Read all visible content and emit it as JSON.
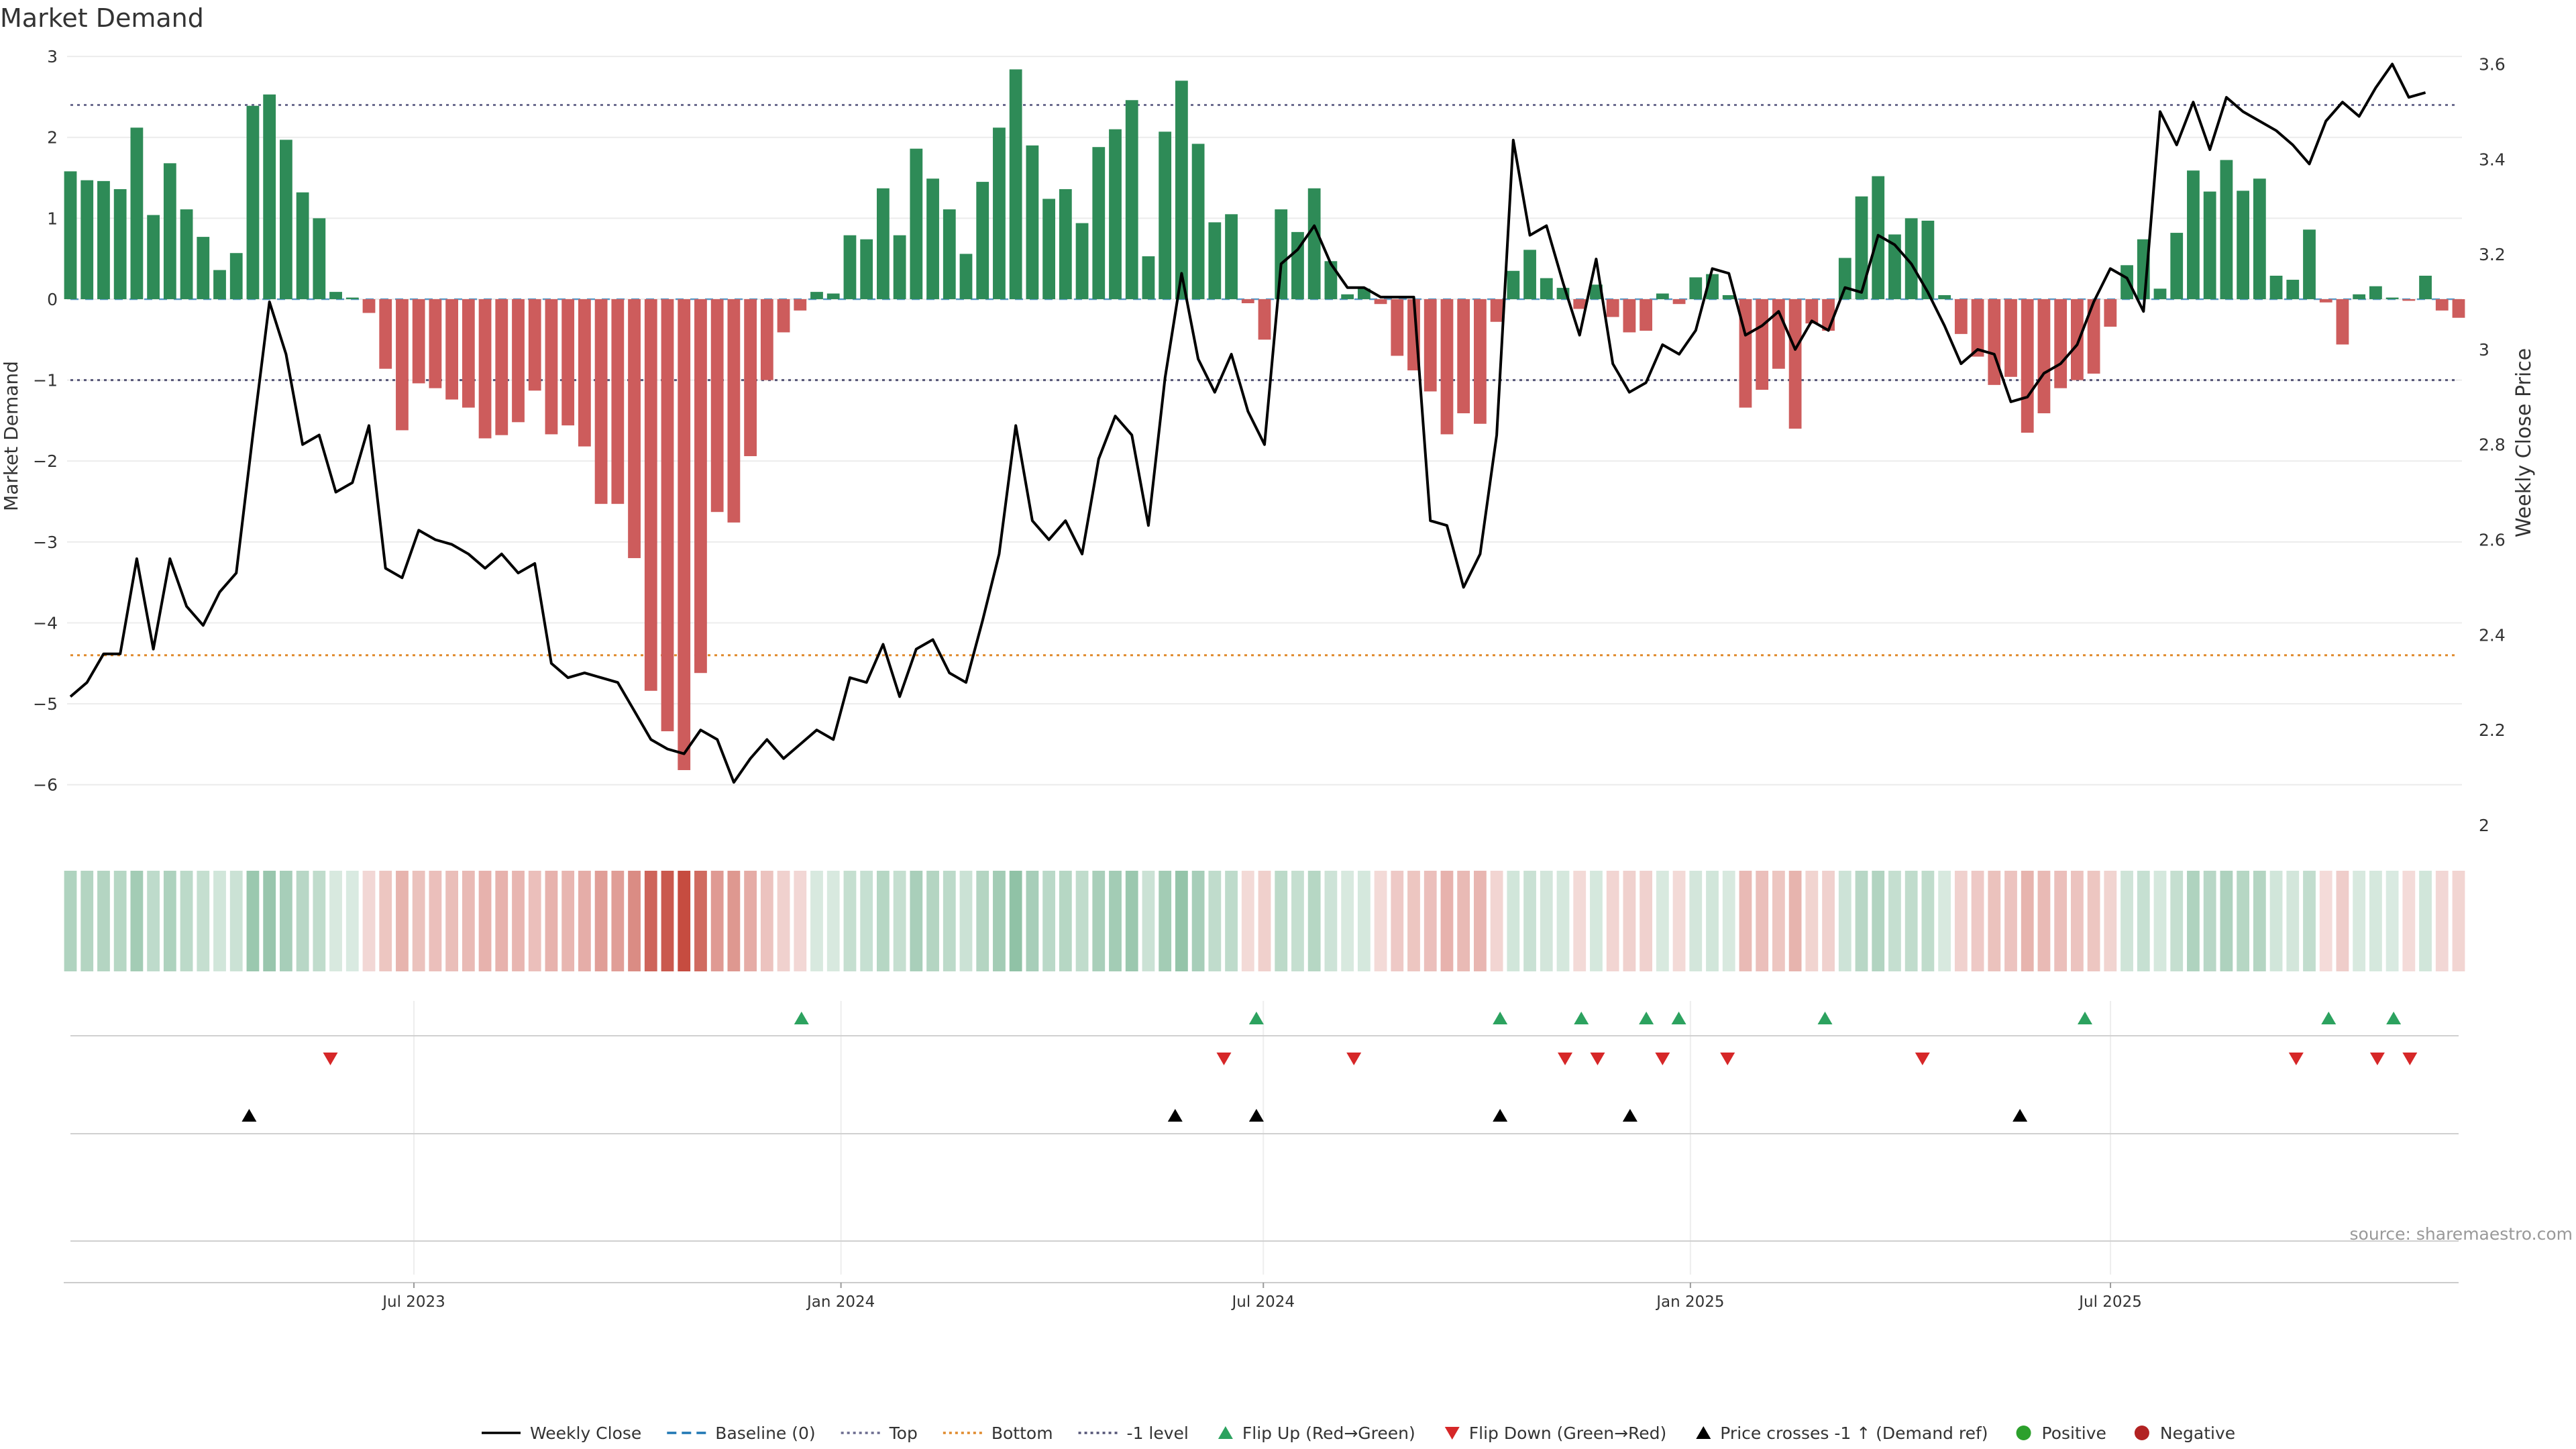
{
  "chart_data": {
    "type": "bar",
    "title": "Market Demand",
    "ylabel": "Market Demand",
    "y2label": "Weekly Close Price",
    "ylim": [
      -6.5,
      3.2
    ],
    "y2lim": [
      2.0,
      3.65
    ],
    "yticks": [
      3,
      2,
      1,
      0,
      -1,
      -2,
      -3,
      -4,
      -5,
      -6
    ],
    "ytick_labels": [
      "3",
      "2",
      "1",
      "0",
      "−1",
      "−2",
      "−3",
      "−4",
      "−5",
      "−6"
    ],
    "y2ticks": [
      3.6,
      3.4,
      3.2,
      3.0,
      2.8,
      2.6,
      2.4,
      2.2,
      2.0
    ],
    "y2tick_labels": [
      "3.6",
      "3.4",
      "3.2",
      "3",
      "2.8",
      "2.6",
      "2.4",
      "2.2",
      "2"
    ],
    "x_start": "2023-02-03",
    "x_end": "2025-11-28",
    "x_ticks": [
      {
        "date": "2023-07-01",
        "label": "Jul 2023"
      },
      {
        "date": "2024-01-01",
        "label": "Jan 2024"
      },
      {
        "date": "2024-07-01",
        "label": "Jul 2024"
      },
      {
        "date": "2025-01-01",
        "label": "Jan 2025"
      },
      {
        "date": "2025-07-01",
        "label": "Jul 2025"
      }
    ],
    "levels": {
      "top": 2.4,
      "bottom": -4.4,
      "minus_one": -1,
      "baseline": 0
    },
    "grid": true,
    "legend_position": "bottom",
    "series": [
      {
        "name": "Market Demand",
        "values": [
          1.58,
          1.47,
          1.46,
          1.36,
          2.12,
          1.04,
          1.68,
          1.11,
          0.77,
          0.36,
          0.57,
          2.39,
          2.53,
          1.97,
          1.32,
          1.0,
          0.09,
          0.02,
          -0.17,
          -0.86,
          -1.62,
          -1.04,
          -1.1,
          -1.24,
          -1.34,
          -1.72,
          -1.68,
          -1.52,
          -1.13,
          -1.67,
          -1.56,
          -1.82,
          -2.53,
          -2.53,
          -3.2,
          -4.84,
          -5.34,
          -5.82,
          -4.62,
          -2.63,
          -2.76,
          -1.94,
          -1.0,
          -0.41,
          -0.14,
          0.09,
          0.07,
          0.79,
          0.74,
          1.37,
          0.79,
          1.86,
          1.49,
          1.11,
          0.56,
          1.45,
          2.12,
          2.84,
          1.9,
          1.24,
          1.36,
          0.94,
          1.88,
          2.1,
          2.46,
          0.53,
          2.07,
          2.7,
          1.92,
          0.95,
          1.05,
          -0.05,
          -0.5,
          1.11,
          0.83,
          1.37,
          0.47,
          0.06,
          0.13,
          -0.06,
          -0.7,
          -0.88,
          -1.14,
          -1.67,
          -1.41,
          -1.54,
          -0.28,
          0.35,
          0.61,
          0.26,
          0.14,
          -0.12,
          0.18,
          -0.22,
          -0.41,
          -0.39,
          0.07,
          -0.06,
          0.27,
          0.31,
          0.05,
          -1.34,
          -1.12,
          -0.86,
          -1.6,
          -0.3,
          -0.39,
          0.51,
          1.27,
          1.52,
          0.8,
          1.0,
          0.97,
          0.05,
          -0.43,
          -0.71,
          -1.06,
          -0.96,
          -1.65,
          -1.41,
          -1.1,
          -1.0,
          -0.92,
          -0.34,
          0.42,
          0.74,
          0.13,
          0.82,
          1.59,
          1.33,
          1.72,
          1.34,
          1.49,
          0.29,
          0.24,
          0.86,
          -0.04,
          -0.56,
          0.06,
          0.16,
          0.02,
          -0.02,
          0.29,
          -0.14,
          -0.23
        ]
      },
      {
        "name": "Weekly Close",
        "axis": "right",
        "values": [
          2.27,
          2.3,
          2.36,
          2.36,
          2.56,
          2.37,
          2.56,
          2.46,
          2.42,
          2.49,
          2.53,
          2.82,
          3.1,
          2.99,
          2.8,
          2.82,
          2.7,
          2.72,
          2.84,
          2.54,
          2.52,
          2.62,
          2.6,
          2.59,
          2.57,
          2.54,
          2.57,
          2.53,
          2.55,
          2.34,
          2.31,
          2.32,
          2.31,
          2.3,
          2.24,
          2.18,
          2.16,
          2.15,
          2.2,
          2.18,
          2.09,
          2.14,
          2.18,
          2.14,
          2.17,
          2.2,
          2.18,
          2.31,
          2.3,
          2.38,
          2.27,
          2.37,
          2.39,
          2.32,
          2.3,
          2.43,
          2.57,
          2.84,
          2.64,
          2.6,
          2.64,
          2.57,
          2.77,
          2.86,
          2.82,
          2.63,
          2.94,
          3.16,
          2.98,
          2.91,
          2.99,
          2.87,
          2.8,
          3.18,
          3.21,
          3.26,
          3.18,
          3.13,
          3.13,
          3.11,
          3.11,
          3.11,
          2.64,
          2.63,
          2.5,
          2.57,
          2.82,
          3.44,
          3.24,
          3.26,
          3.14,
          3.03,
          3.19,
          2.97,
          2.91,
          2.93,
          3.01,
          2.99,
          3.04,
          3.17,
          3.16,
          3.03,
          3.05,
          3.08,
          3.0,
          3.06,
          3.04,
          3.13,
          3.12,
          3.24,
          3.22,
          3.18,
          3.12,
          3.05,
          2.97,
          3.0,
          2.99,
          2.89,
          2.9,
          2.95,
          2.97,
          3.01,
          3.1,
          3.17,
          3.15,
          3.08,
          3.5,
          3.43,
          3.52,
          3.42,
          3.53,
          3.5,
          3.48,
          3.46,
          3.43,
          3.39,
          3.48,
          3.52,
          3.49,
          3.55,
          3.6,
          3.53,
          3.54
        ]
      }
    ],
    "markers": {
      "flip_up": [
        "2023-12-15",
        "2024-06-28",
        "2024-10-11",
        "2024-11-15",
        "2024-12-13",
        "2024-12-27",
        "2025-02-28",
        "2025-06-20",
        "2025-10-03",
        "2025-10-31"
      ],
      "flip_down": [
        "2023-05-26",
        "2024-06-14",
        "2024-08-09",
        "2024-11-08",
        "2024-11-22",
        "2024-12-20",
        "2025-01-17",
        "2025-04-11",
        "2025-09-19",
        "2025-10-24",
        "2025-11-07"
      ],
      "price_cross": [
        "2023-04-21",
        "2024-05-24",
        "2024-06-28",
        "2024-10-11",
        "2024-12-06",
        "2025-05-23"
      ]
    },
    "annotation": "source: sharemaestro.com",
    "legend": [
      {
        "label": "Weekly Close",
        "kind": "solid",
        "color": "#000000"
      },
      {
        "label": "Baseline (0)",
        "kind": "dashed",
        "color": "#1f77b4"
      },
      {
        "label": "Top",
        "kind": "dotted",
        "color": "#6b6b8e"
      },
      {
        "label": "Bottom",
        "kind": "dotted",
        "color": "#e08a2c"
      },
      {
        "label": "-1 level",
        "kind": "dotted",
        "color": "#555577"
      },
      {
        "label": "Flip Up (Red→Green)",
        "kind": "tri-up",
        "color": "#2ca25f"
      },
      {
        "label": "Flip Down (Green→Red)",
        "kind": "tri-down",
        "color": "#d62728"
      },
      {
        "label": "Price crosses -1 ↑ (Demand ref)",
        "kind": "tri-up",
        "color": "#000000"
      },
      {
        "label": "Positive",
        "kind": "dot",
        "color": "#2ca02c"
      },
      {
        "label": "Negative",
        "kind": "dot",
        "color": "#b22222"
      }
    ],
    "colors": {
      "positive": "#2e8b57",
      "negative": "#cd5c5c",
      "price": "#000000",
      "top": "#6b6b8e",
      "bottom": "#e08a2c",
      "minus_one": "#555577",
      "baseline": "#1f77b4",
      "heat_positive": "#2e8b57",
      "heat_negative": "#c0392b"
    }
  }
}
